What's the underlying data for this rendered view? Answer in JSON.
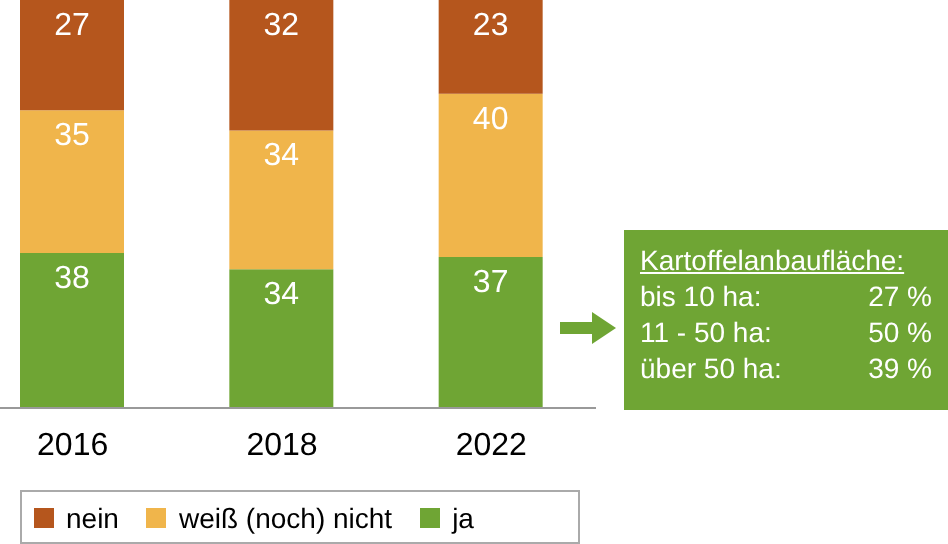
{
  "chart_data": {
    "type": "bar",
    "stacked": true,
    "categories": [
      "2016",
      "2018",
      "2022"
    ],
    "series": [
      {
        "name": "ja",
        "color": "#6fa534",
        "values": [
          38,
          34,
          37
        ]
      },
      {
        "name": "weiß (noch) nicht",
        "color": "#f0b54b",
        "values": [
          35,
          34,
          40
        ]
      },
      {
        "name": "nein",
        "color": "#b5561d",
        "values": [
          27,
          32,
          23
        ]
      }
    ],
    "ylim": [
      0,
      100
    ],
    "tick_labels": "x",
    "data_labels": true,
    "legend": "bottom",
    "grid": false,
    "annotations": [
      "Kartoffelanbaufläche:",
      "bis 10 ha:",
      "27 %",
      "11 - 50 ha:",
      "50 %",
      "über 50 ha:",
      "39 %"
    ]
  }
}
